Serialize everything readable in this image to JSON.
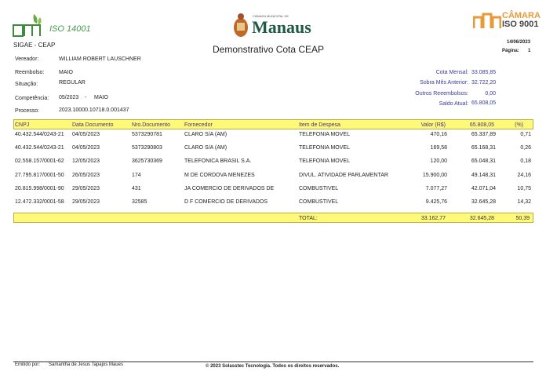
{
  "header": {
    "system": "SIGAE - CEAP",
    "title": "Demonstrativo Cota CEAP",
    "date": "14/06/2023",
    "page_label": "Página:",
    "page": "1",
    "logo_left": "ISO 14001",
    "logo_center_small": "CÂMARA MUNICIPAL DE",
    "logo_center": "Manaus",
    "logo_right_top": "CÂMARA",
    "logo_right_bottom": "ISO 9001"
  },
  "info": {
    "vereador_label": "Vereador:",
    "vereador": "WILLIAM ROBERT LAUSCHNER",
    "reembolso_label": "Reembolso:",
    "reembolso": "MAIO",
    "situacao_label": "Situação:",
    "situacao": "REGULAR",
    "competencia_label": "Competência:",
    "competencia": "05/2023",
    "competencia_sep": "-",
    "competencia_mes": "MAIO",
    "processo_label": "Processo:",
    "processo": "2023.10000.10718.0.001437"
  },
  "summary": {
    "cota_label": "Cota Mensal:",
    "cota": "33.085,85",
    "sobra_label": "Sobra Mês Anterior:",
    "sobra": "32.722,20",
    "outros_label": "Outros Reeembolsos:",
    "outros": "0,00",
    "saldo_label": "Saldo Atual:",
    "saldo": "65.808,05"
  },
  "table": {
    "headers": [
      "CNPJ",
      "Data Documento",
      "Nro.Documento",
      "Fornecedor",
      "Item de Despesa",
      "Valor (R$)",
      "65.808,05",
      "(%)"
    ],
    "rows": [
      [
        "40.432.544/0243-21",
        "04/05/2023",
        "5373290781",
        "CLARO S/A (AM)",
        "TELEFONIA MOVEL",
        "470,16",
        "65.337,89",
        "0,71"
      ],
      [
        "40.432.544/0243-21",
        "04/05/2023",
        "5373290803",
        "CLARO S/A (AM)",
        "TELEFONIA MOVEL",
        "169,58",
        "65.168,31",
        "0,26"
      ],
      [
        "02.558.157/0001-62",
        "12/05/2023",
        "3625730369",
        "TELEFONICA BRASIL S.A.",
        "TELEFONIA MOVEL",
        "120,00",
        "65.048,31",
        "0,18"
      ],
      [
        "27.795.817/0001-50",
        "26/05/2023",
        "174",
        "M DE CORDOVA MENEZES",
        "DIVUL. ATIVIDADE PARLAMENTAR",
        "15.900,00",
        "49.148,31",
        "24,16"
      ],
      [
        "20.815.998/0001-90",
        "29/05/2023",
        "431",
        "JA COMERCIO DE DERIVADOS DE",
        "COMBUSTIVEL",
        "7.077,27",
        "42.071,04",
        "10,75"
      ],
      [
        "12.472.332/0001-58",
        "29/05/2023",
        "32585",
        "D F COMERCIO DE DERIVADOS",
        "COMBUSTIVEL",
        "9.425,76",
        "32.645,28",
        "14,32"
      ]
    ],
    "total": {
      "label": "TOTAL:",
      "valor": "33.162,77",
      "saldo": "32.645,28",
      "pct": "50,39"
    }
  },
  "footer": {
    "emitido_label": "Emitido por:",
    "emitido": "Samantha de Jesus Tapajos Maues",
    "copyright": "© 2023 Solasstec Tecnologia. Todos os direitos reservados."
  }
}
